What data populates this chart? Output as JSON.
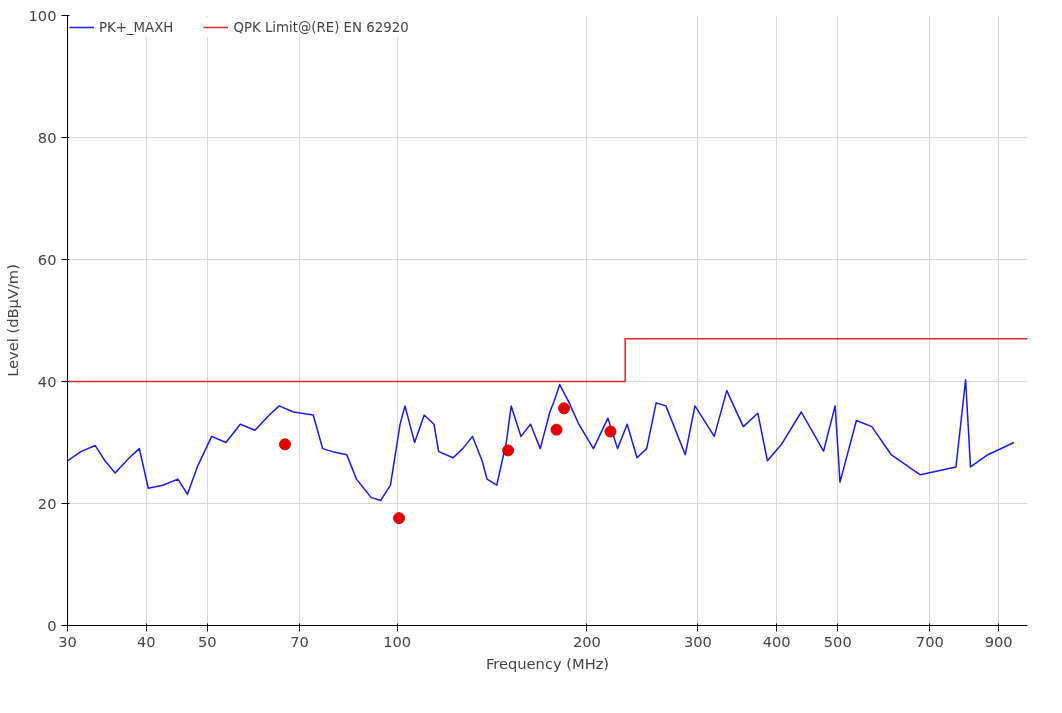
{
  "chart_data": {
    "type": "line",
    "xlabel": "Frequency (MHz)",
    "ylabel": "Level (dBµV/m)",
    "log": "x",
    "xlim": [
      30,
      1000
    ],
    "ylim": [
      0,
      100
    ],
    "xticks": [
      30,
      40,
      50,
      70,
      100,
      200,
      300,
      400,
      500,
      700,
      900
    ],
    "yticks": [
      0,
      20,
      40,
      60,
      80,
      100
    ],
    "grid": true,
    "legend": "top",
    "line_style": "solid",
    "series": [
      {
        "name": "PK+_MAXH",
        "color": "#1a1ae6",
        "x": [
          30,
          31.5,
          33.2,
          34.4,
          35.7,
          37.6,
          39.0,
          40.3,
          42.5,
          44.9,
          46.5,
          48.2,
          50.8,
          53.5,
          56.4,
          59.5,
          62.7,
          65.0,
          68.5,
          73.6,
          76.2,
          79.0,
          83.2,
          86.2,
          90.9,
          94.2,
          97.6,
          101.1,
          102.9,
          106.6,
          110.4,
          114.4,
          116.4,
          122.7,
          127.1,
          131.7,
          136.4,
          138.9,
          143.9,
          149.0,
          151.7,
          157.2,
          162.8,
          168.7,
          174.7,
          177.8,
          181.1,
          187.5,
          194.2,
          204.8,
          216.0,
          223.7,
          231.7,
          240.2,
          248.8,
          257.6,
          266.9,
          286.5,
          296.8,
          318.5,
          333.4,
          354.1,
          373.4,
          386.8,
          407.8,
          437.7,
          474.8,
          495.3,
          504.2,
          535.3,
          566.3,
          607.8,
          675.8,
          770.1,
          797.7,
          812.0,
          865.3,
          951.7
        ],
        "values": [
          27,
          28.5,
          29.5,
          27,
          25,
          27.5,
          29,
          22.5,
          23,
          24,
          21.5,
          26,
          31,
          30,
          33,
          32,
          34.5,
          36,
          35,
          34.5,
          29,
          28.5,
          28,
          24,
          21,
          20.5,
          23,
          33,
          36,
          30,
          34.5,
          33,
          28.5,
          27.5,
          29,
          31,
          27,
          24,
          23,
          30,
          36,
          31,
          33,
          29,
          35,
          37,
          39.5,
          36.5,
          33,
          29,
          34,
          29,
          33,
          27.5,
          29,
          36.5,
          36,
          28,
          36,
          31,
          38.5,
          32.6,
          34.8,
          27,
          29.8,
          35,
          28.6,
          36,
          23.5,
          33.6,
          32.6,
          28,
          24.7,
          26,
          40.3,
          26,
          28,
          30
        ]
      },
      {
        "name": "QPK Limit@(RE) EN 62920",
        "type": "line",
        "color": "#e02828",
        "x": [
          30,
          230,
          230,
          1000
        ],
        "values": [
          40,
          40,
          47,
          47
        ]
      },
      {
        "type": "scatter",
        "marker": "circle",
        "color": "#e00000",
        "x": [
          66.4,
          100.7,
          150,
          179,
          184,
          218
        ],
        "values": [
          29.7,
          17.6,
          28.7,
          32.1,
          35.6,
          31.8
        ]
      }
    ]
  }
}
